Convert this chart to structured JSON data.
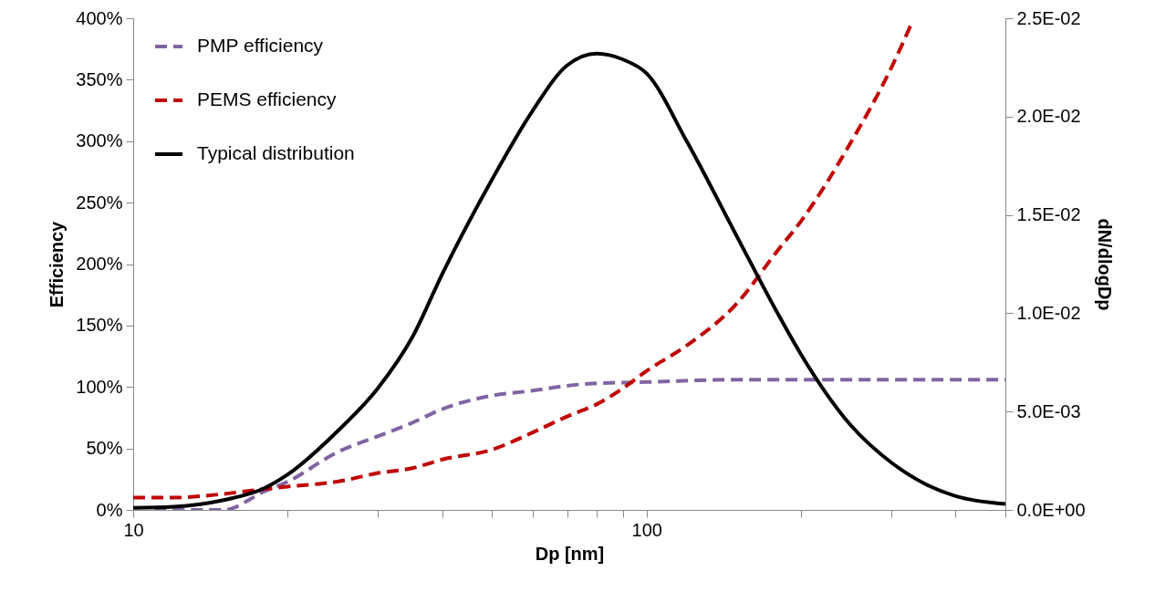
{
  "chart_data": {
    "type": "line",
    "xlabel": "Dp [nm]",
    "ylabel": "Efficiency",
    "y2label": "dN/dlogDp",
    "log": "x",
    "grid": false,
    "legend": "top left",
    "marker": "none",
    "xlim": [
      10,
      500
    ],
    "xticks": [
      10,
      {
        "value": 20,
        "label": null
      },
      {
        "value": 30,
        "label": null
      },
      {
        "value": 40,
        "label": null
      },
      {
        "value": 50,
        "label": null
      },
      {
        "value": 60,
        "label": null
      },
      {
        "value": 70,
        "label": null
      },
      {
        "value": 80,
        "label": null
      },
      {
        "value": 90,
        "label": null
      },
      100,
      {
        "value": 200,
        "label": null
      },
      {
        "value": 300,
        "label": null
      },
      {
        "value": 400,
        "label": null
      },
      {
        "value": 500,
        "label": null
      }
    ],
    "ylim": [
      0,
      400
    ],
    "yticks": [
      {
        "value": 0,
        "label": "0%"
      },
      {
        "value": 50,
        "label": "50%"
      },
      {
        "value": 100,
        "label": "100%"
      },
      {
        "value": 150,
        "label": "150%"
      },
      {
        "value": 200,
        "label": "200%"
      },
      {
        "value": 250,
        "label": "250%"
      },
      {
        "value": 300,
        "label": "300%"
      },
      {
        "value": 350,
        "label": "350%"
      },
      {
        "value": 400,
        "label": "400%"
      }
    ],
    "y2lim": [
      0,
      0.025
    ],
    "y2ticks": [
      {
        "value": 0,
        "label": "0.0E+00"
      },
      {
        "value": 0.005,
        "label": "5.0E-03"
      },
      {
        "value": 0.01,
        "label": "1.0E-02"
      },
      {
        "value": 0.015,
        "label": "1.5E-02"
      },
      {
        "value": 0.02,
        "label": "2.0E-02"
      },
      {
        "value": 0.025,
        "label": "2.5E-02"
      }
    ],
    "series": [
      {
        "name": "PMP efficiency",
        "color": "#8064a2",
        "line_style": "dashed",
        "x": [
          11,
          12,
          15,
          18,
          20,
          25,
          30,
          35,
          40,
          50,
          60,
          70,
          80,
          100,
          150,
          200,
          300,
          400,
          500
        ],
        "values": [
          0,
          0,
          0,
          15,
          23,
          47,
          60,
          71,
          82,
          93,
          97,
          101,
          103,
          104,
          106,
          106,
          106,
          106,
          106
        ]
      },
      {
        "name": "PEMS efficiency",
        "color": "#c00000",
        "line_style": "dashed",
        "x": [
          10,
          12,
          15,
          18,
          20,
          25,
          30,
          35,
          40,
          50,
          60,
          70,
          80,
          90,
          100,
          120,
          150,
          180,
          200,
          250,
          300,
          330
        ],
        "values": [
          10,
          10,
          13,
          17,
          19,
          23,
          30,
          34,
          41,
          49,
          63,
          76,
          86,
          99,
          113,
          134,
          168,
          211,
          235,
          299,
          360,
          398
        ]
      },
      {
        "name": "Typical distribution",
        "color": "#000000",
        "line_style": "solid",
        "axis": "y2",
        "x": [
          10,
          12,
          15,
          18,
          20,
          25,
          30,
          35,
          40,
          50,
          60,
          70,
          80,
          90,
          100,
          120,
          150,
          180,
          200,
          250,
          300,
          350,
          400,
          500
        ],
        "values": [
          0.0001,
          0.00016,
          0.0005,
          0.0011,
          0.0018,
          0.004,
          0.0062,
          0.0088,
          0.012,
          0.0168,
          0.0203,
          0.0226,
          0.0232,
          0.0229,
          0.0222,
          0.0187,
          0.0139,
          0.01,
          0.0079,
          0.0043,
          0.0024,
          0.0013,
          0.0007,
          0.0003
        ]
      }
    ]
  }
}
